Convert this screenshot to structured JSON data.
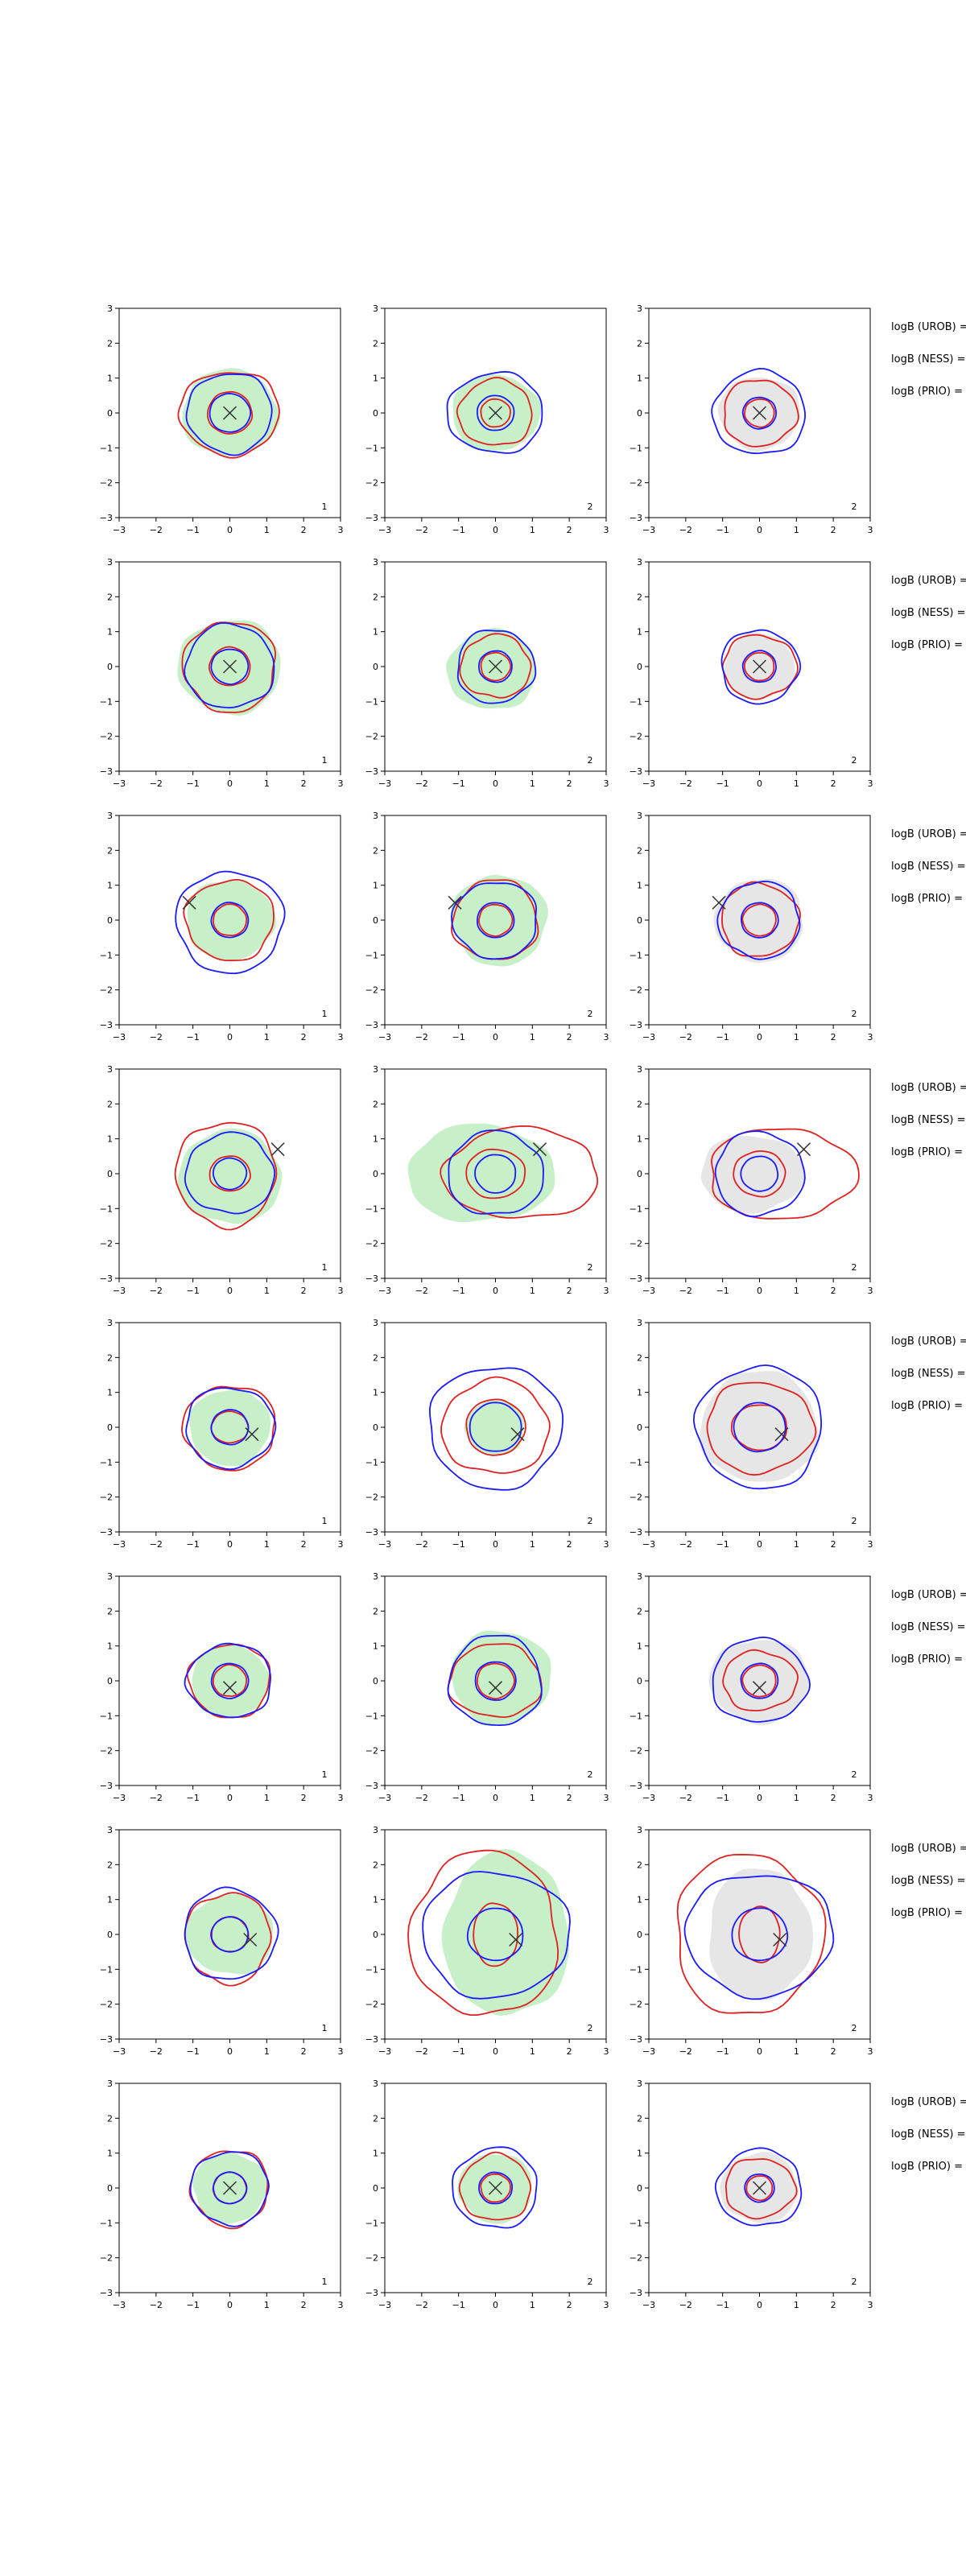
{
  "chart_data": {
    "type": "contour-grid",
    "rows": 8,
    "cols": 3,
    "xlim": [
      -3,
      3
    ],
    "ylim": [
      -3,
      3
    ],
    "xticks": [
      "−3",
      "−2",
      "−1",
      "0",
      "1",
      "2",
      "3"
    ],
    "yticks": [
      "3",
      "2",
      "1",
      "0",
      "−1",
      "−2",
      "−3"
    ],
    "row_labels": [
      "logB (UROB) =",
      "logB (NESS) =",
      "logB (PRIO) ="
    ],
    "colors": {
      "red": "#e02020",
      "blue": "#1a1aff",
      "green_fill": "#c8f0c8",
      "grey_fill": "#e6e6e6",
      "marker": "#333333"
    },
    "panels": [
      {
        "row": 0,
        "col": 0,
        "label": "1",
        "fill": "green",
        "marker": [
          0,
          0
        ],
        "blue": [
          {
            "cx": 0,
            "cy": 0,
            "rx": 0.55,
            "ry": 0.55
          },
          {
            "cx": 0,
            "cy": 0,
            "rx": 1.15,
            "ry": 1.15
          }
        ],
        "red": [
          {
            "cx": 0,
            "cy": 0,
            "rx": 0.6,
            "ry": 0.6
          },
          {
            "cx": 0,
            "cy": 0,
            "rx": 1.35,
            "ry": 1.2
          }
        ],
        "fillShape": {
          "cx": 0,
          "cy": 0,
          "rx": 1.3,
          "ry": 1.25
        }
      },
      {
        "row": 0,
        "col": 1,
        "label": "2",
        "fill": "green",
        "marker": [
          0,
          0
        ],
        "blue": [
          {
            "cx": 0,
            "cy": 0,
            "rx": 0.5,
            "ry": 0.5
          },
          {
            "cx": 0,
            "cy": 0,
            "rx": 1.3,
            "ry": 1.15
          }
        ],
        "red": [
          {
            "cx": 0,
            "cy": 0,
            "rx": 0.4,
            "ry": 0.4
          },
          {
            "cx": 0,
            "cy": 0,
            "rx": 1.0,
            "ry": 0.95
          }
        ],
        "fillShape": {
          "cx": 0,
          "cy": 0,
          "rx": 1.2,
          "ry": 1.1
        }
      },
      {
        "row": 0,
        "col": 2,
        "label": "2",
        "fill": "grey",
        "marker": [
          0,
          0
        ],
        "blue": [
          {
            "cx": 0,
            "cy": 0,
            "rx": 0.45,
            "ry": 0.45
          },
          {
            "cx": 0,
            "cy": 0,
            "rx": 1.25,
            "ry": 1.2
          }
        ],
        "red": [
          {
            "cx": 0,
            "cy": 0,
            "rx": 0.4,
            "ry": 0.4
          },
          {
            "cx": 0,
            "cy": 0,
            "rx": 1.0,
            "ry": 0.95
          }
        ],
        "fillShape": {
          "cx": 0,
          "cy": 0,
          "rx": 1.1,
          "ry": 1.05
        }
      },
      {
        "row": 1,
        "col": 0,
        "label": "1",
        "fill": "green",
        "marker": [
          0,
          0
        ],
        "blue": [
          {
            "cx": 0,
            "cy": 0,
            "rx": 0.5,
            "ry": 0.5
          },
          {
            "cx": 0,
            "cy": 0,
            "rx": 1.2,
            "ry": 1.2
          }
        ],
        "red": [
          {
            "cx": 0,
            "cy": 0,
            "rx": 0.55,
            "ry": 0.55
          },
          {
            "cx": 0,
            "cy": 0,
            "rx": 1.25,
            "ry": 1.3
          }
        ],
        "fillShape": {
          "cx": 0,
          "cy": 0,
          "rx": 1.4,
          "ry": 1.35
        }
      },
      {
        "row": 1,
        "col": 1,
        "label": "2",
        "fill": "green",
        "marker": [
          0,
          0
        ],
        "blue": [
          {
            "cx": 0,
            "cy": 0,
            "rx": 0.45,
            "ry": 0.45
          },
          {
            "cx": 0,
            "cy": 0,
            "rx": 1.05,
            "ry": 1.05
          }
        ],
        "red": [
          {
            "cx": 0,
            "cy": 0,
            "rx": 0.4,
            "ry": 0.4
          },
          {
            "cx": 0,
            "cy": 0,
            "rx": 0.95,
            "ry": 0.9
          }
        ],
        "fillShape": {
          "cx": -0.1,
          "cy": -0.1,
          "rx": 1.2,
          "ry": 1.15
        }
      },
      {
        "row": 1,
        "col": 2,
        "label": "2",
        "fill": "grey",
        "marker": [
          0,
          0
        ],
        "blue": [
          {
            "cx": 0,
            "cy": 0,
            "rx": 0.45,
            "ry": 0.45
          },
          {
            "cx": 0,
            "cy": 0,
            "rx": 1.05,
            "ry": 1.05
          }
        ],
        "red": [
          {
            "cx": 0,
            "cy": 0,
            "rx": 0.4,
            "ry": 0.4
          },
          {
            "cx": 0,
            "cy": 0,
            "rx": 1.0,
            "ry": 0.9
          }
        ],
        "fillShape": {
          "cx": 0,
          "cy": 0,
          "rx": 0.95,
          "ry": 0.95
        }
      },
      {
        "row": 2,
        "col": 0,
        "label": "1",
        "fill": "green",
        "marker": [
          -1.1,
          0.5
        ],
        "blue": [
          {
            "cx": 0,
            "cy": 0,
            "rx": 0.5,
            "ry": 0.5
          },
          {
            "cx": 0,
            "cy": -0.05,
            "rx": 1.45,
            "ry": 1.45
          }
        ],
        "red": [
          {
            "cx": 0,
            "cy": 0,
            "rx": 0.45,
            "ry": 0.45
          },
          {
            "cx": 0,
            "cy": 0,
            "rx": 1.2,
            "ry": 1.15
          }
        ],
        "fillShape": {
          "cx": 0,
          "cy": 0,
          "rx": 1.2,
          "ry": 1.15
        }
      },
      {
        "row": 2,
        "col": 1,
        "label": "2",
        "fill": "green",
        "marker": [
          -1.1,
          0.5
        ],
        "blue": [
          {
            "cx": 0,
            "cy": 0,
            "rx": 0.5,
            "ry": 0.5
          },
          {
            "cx": 0,
            "cy": 0,
            "rx": 1.15,
            "ry": 1.1
          }
        ],
        "red": [
          {
            "cx": 0,
            "cy": 0,
            "rx": 0.45,
            "ry": 0.45
          },
          {
            "cx": 0,
            "cy": 0,
            "rx": 1.15,
            "ry": 1.15
          }
        ],
        "fillShape": {
          "cx": 0.1,
          "cy": 0,
          "rx": 1.3,
          "ry": 1.3
        }
      },
      {
        "row": 2,
        "col": 2,
        "label": "2",
        "fill": "grey",
        "marker": [
          -1.1,
          0.5
        ],
        "blue": [
          {
            "cx": 0,
            "cy": 0,
            "rx": 0.5,
            "ry": 0.5
          },
          {
            "cx": 0,
            "cy": 0,
            "rx": 1.1,
            "ry": 1.1
          }
        ],
        "red": [
          {
            "cx": 0,
            "cy": 0,
            "rx": 0.45,
            "ry": 0.45
          },
          {
            "cx": 0,
            "cy": 0,
            "rx": 1.05,
            "ry": 1.05
          }
        ],
        "fillShape": {
          "cx": 0,
          "cy": 0,
          "rx": 1.2,
          "ry": 1.2
        }
      },
      {
        "row": 3,
        "col": 0,
        "label": "1",
        "fill": "green",
        "marker": [
          1.3,
          0.7
        ],
        "blue": [
          {
            "cx": 0,
            "cy": 0,
            "rx": 0.45,
            "ry": 0.45
          },
          {
            "cx": 0,
            "cy": 0,
            "rx": 1.2,
            "ry": 1.15
          }
        ],
        "red": [
          {
            "cx": 0,
            "cy": 0,
            "rx": 0.55,
            "ry": 0.5
          },
          {
            "cx": -0.1,
            "cy": 0,
            "rx": 1.35,
            "ry": 1.5
          }
        ],
        "fillShape": {
          "cx": 0,
          "cy": -0.1,
          "rx": 1.4,
          "ry": 1.35
        }
      },
      {
        "row": 3,
        "col": 1,
        "label": "2",
        "fill": "green",
        "marker": [
          1.2,
          0.7
        ],
        "blue": [
          {
            "cx": 0,
            "cy": 0,
            "rx": 0.55,
            "ry": 0.55
          },
          {
            "cx": 0,
            "cy": 0,
            "rx": 1.3,
            "ry": 1.2
          }
        ],
        "red": [
          {
            "cx": 0,
            "cy": 0,
            "rx": 0.8,
            "ry": 0.7
          },
          {
            "cx": 0.7,
            "cy": 0,
            "rx": 2.1,
            "ry": 1.3
          }
        ],
        "fillShape": {
          "cx": -0.4,
          "cy": 0,
          "rx": 2.0,
          "ry": 1.4
        }
      },
      {
        "row": 3,
        "col": 2,
        "label": "2",
        "fill": "grey",
        "marker": [
          1.2,
          0.7
        ],
        "blue": [
          {
            "cx": 0,
            "cy": 0,
            "rx": 0.5,
            "ry": 0.5
          },
          {
            "cx": 0,
            "cy": 0,
            "rx": 1.2,
            "ry": 1.2
          }
        ],
        "red": [
          {
            "cx": 0,
            "cy": 0,
            "rx": 0.7,
            "ry": 0.65
          },
          {
            "cx": 0.6,
            "cy": 0,
            "rx": 2.0,
            "ry": 1.3
          }
        ],
        "fillShape": {
          "cx": -0.2,
          "cy": 0,
          "rx": 1.4,
          "ry": 1.1
        }
      },
      {
        "row": 4,
        "col": 0,
        "label": "1",
        "fill": "green",
        "marker": [
          0.6,
          -0.2
        ],
        "blue": [
          {
            "cx": 0,
            "cy": 0,
            "rx": 0.5,
            "ry": 0.5
          },
          {
            "cx": 0,
            "cy": 0,
            "rx": 1.2,
            "ry": 1.15
          }
        ],
        "red": [
          {
            "cx": 0,
            "cy": 0,
            "rx": 0.5,
            "ry": 0.45
          },
          {
            "cx": 0,
            "cy": 0,
            "rx": 1.25,
            "ry": 1.2
          }
        ],
        "fillShape": {
          "cx": 0,
          "cy": 0,
          "rx": 1.1,
          "ry": 1.1
        }
      },
      {
        "row": 4,
        "col": 1,
        "label": "2",
        "fill": "green",
        "marker": [
          0.6,
          -0.2
        ],
        "blue": [
          {
            "cx": 0,
            "cy": 0,
            "rx": 0.7,
            "ry": 0.7
          },
          {
            "cx": 0,
            "cy": 0,
            "rx": 1.8,
            "ry": 1.75
          }
        ],
        "red": [
          {
            "cx": 0,
            "cy": 0,
            "rx": 0.8,
            "ry": 0.8
          },
          {
            "cx": 0,
            "cy": 0,
            "rx": 1.45,
            "ry": 1.35
          }
        ],
        "fillShape": {
          "cx": 0,
          "cy": 0,
          "rx": 0.8,
          "ry": 0.8
        }
      },
      {
        "row": 4,
        "col": 2,
        "label": "2",
        "fill": "grey",
        "marker": [
          0.6,
          -0.2
        ],
        "blue": [
          {
            "cx": 0,
            "cy": 0,
            "rx": 0.7,
            "ry": 0.7
          },
          {
            "cx": 0,
            "cy": 0,
            "rx": 1.7,
            "ry": 1.75
          }
        ],
        "red": [
          {
            "cx": 0,
            "cy": 0,
            "rx": 0.75,
            "ry": 0.65
          },
          {
            "cx": 0,
            "cy": 0,
            "rx": 1.45,
            "ry": 1.3
          }
        ],
        "fillShape": {
          "cx": 0,
          "cy": 0,
          "rx": 1.6,
          "ry": 1.6
        }
      },
      {
        "row": 5,
        "col": 0,
        "label": "1",
        "fill": "green",
        "marker": [
          0,
          -0.2
        ],
        "blue": [
          {
            "cx": 0,
            "cy": 0,
            "rx": 0.5,
            "ry": 0.5
          },
          {
            "cx": 0,
            "cy": 0,
            "rx": 1.15,
            "ry": 1.05
          }
        ],
        "red": [
          {
            "cx": 0,
            "cy": 0,
            "rx": 0.45,
            "ry": 0.45
          },
          {
            "cx": 0,
            "cy": 0,
            "rx": 1.1,
            "ry": 1.05
          }
        ],
        "fillShape": {
          "cx": 0,
          "cy": 0,
          "rx": 1.05,
          "ry": 1.05
        }
      },
      {
        "row": 5,
        "col": 1,
        "label": "2",
        "fill": "green",
        "marker": [
          0,
          -0.2
        ],
        "blue": [
          {
            "cx": 0,
            "cy": 0,
            "rx": 0.55,
            "ry": 0.55
          },
          {
            "cx": 0,
            "cy": 0,
            "rx": 1.25,
            "ry": 1.3
          }
        ],
        "red": [
          {
            "cx": 0,
            "cy": 0,
            "rx": 0.5,
            "ry": 0.5
          },
          {
            "cx": 0,
            "cy": 0,
            "rx": 1.25,
            "ry": 1.05
          }
        ],
        "fillShape": {
          "cx": 0.15,
          "cy": 0.1,
          "rx": 1.35,
          "ry": 1.35
        }
      },
      {
        "row": 5,
        "col": 2,
        "label": "2",
        "fill": "grey",
        "marker": [
          0,
          -0.2
        ],
        "blue": [
          {
            "cx": 0,
            "cy": 0,
            "rx": 0.5,
            "ry": 0.5
          },
          {
            "cx": 0,
            "cy": 0,
            "rx": 1.3,
            "ry": 1.2
          }
        ],
        "red": [
          {
            "cx": 0,
            "cy": 0,
            "rx": 0.45,
            "ry": 0.45
          },
          {
            "cx": 0,
            "cy": 0,
            "rx": 1.0,
            "ry": 0.85
          }
        ],
        "fillShape": {
          "cx": 0,
          "cy": 0,
          "rx": 1.35,
          "ry": 1.2
        }
      },
      {
        "row": 6,
        "col": 0,
        "label": "1",
        "fill": "green",
        "marker": [
          0.55,
          -0.15
        ],
        "blue": [
          {
            "cx": 0,
            "cy": 0,
            "rx": 0.5,
            "ry": 0.5
          },
          {
            "cx": 0,
            "cy": 0,
            "rx": 1.25,
            "ry": 1.3
          }
        ],
        "red": [
          {
            "cx": 0,
            "cy": 0,
            "rx": 0.5,
            "ry": 0.5
          },
          {
            "cx": -0.05,
            "cy": -0.1,
            "rx": 1.15,
            "ry": 1.3
          }
        ],
        "fillShape": {
          "cx": 0,
          "cy": 0,
          "rx": 1.2,
          "ry": 1.15
        }
      },
      {
        "row": 6,
        "col": 1,
        "label": "2",
        "fill": "green",
        "marker": [
          0.55,
          -0.15
        ],
        "blue": [
          {
            "cx": 0,
            "cy": 0,
            "rx": 0.75,
            "ry": 0.75
          },
          {
            "cx": 0,
            "cy": 0,
            "rx": 2.0,
            "ry": 1.8
          }
        ],
        "red": [
          {
            "cx": 0,
            "cy": 0,
            "rx": 0.6,
            "ry": 0.9
          },
          {
            "cx": -0.3,
            "cy": 0,
            "rx": 2.0,
            "ry": 2.35
          }
        ],
        "fillShape": {
          "cx": 0.3,
          "cy": 0,
          "rx": 1.7,
          "ry": 2.35
        }
      },
      {
        "row": 6,
        "col": 2,
        "label": "2",
        "fill": "grey",
        "marker": [
          0.55,
          -0.15
        ],
        "blue": [
          {
            "cx": 0,
            "cy": 0,
            "rx": 0.75,
            "ry": 0.75
          },
          {
            "cx": 0,
            "cy": 0,
            "rx": 2.0,
            "ry": 1.75
          }
        ],
        "red": [
          {
            "cx": 0,
            "cy": 0,
            "rx": 0.55,
            "ry": 0.8
          },
          {
            "cx": -0.3,
            "cy": 0,
            "rx": 2.0,
            "ry": 2.3
          }
        ],
        "fillShape": {
          "cx": 0,
          "cy": 0,
          "rx": 1.4,
          "ry": 1.9
        }
      },
      {
        "row": 7,
        "col": 0,
        "label": "1",
        "fill": "green",
        "marker": [
          0,
          0
        ],
        "blue": [
          {
            "cx": 0,
            "cy": 0,
            "rx": 0.45,
            "ry": 0.45
          },
          {
            "cx": 0,
            "cy": 0,
            "rx": 1.05,
            "ry": 1.05
          }
        ],
        "red": [
          {
            "cx": 0,
            "cy": 0,
            "rx": 0.45,
            "ry": 0.45
          },
          {
            "cx": 0,
            "cy": 0,
            "rx": 1.05,
            "ry": 1.1
          }
        ],
        "fillShape": {
          "cx": 0,
          "cy": 0,
          "rx": 1.0,
          "ry": 1.0
        }
      },
      {
        "row": 7,
        "col": 1,
        "label": "2",
        "fill": "green",
        "marker": [
          0,
          0
        ],
        "blue": [
          {
            "cx": 0,
            "cy": 0,
            "rx": 0.45,
            "ry": 0.45
          },
          {
            "cx": 0,
            "cy": 0,
            "rx": 1.15,
            "ry": 1.15
          }
        ],
        "red": [
          {
            "cx": 0,
            "cy": 0,
            "rx": 0.4,
            "ry": 0.4
          },
          {
            "cx": 0,
            "cy": 0,
            "rx": 0.95,
            "ry": 0.95
          }
        ],
        "fillShape": {
          "cx": 0,
          "cy": 0,
          "rx": 1.0,
          "ry": 1.0
        }
      },
      {
        "row": 7,
        "col": 2,
        "label": "2",
        "fill": "grey",
        "marker": [
          0,
          0
        ],
        "blue": [
          {
            "cx": 0,
            "cy": 0,
            "rx": 0.4,
            "ry": 0.4
          },
          {
            "cx": 0,
            "cy": 0,
            "rx": 1.15,
            "ry": 1.1
          }
        ],
        "red": [
          {
            "cx": 0,
            "cy": 0,
            "rx": 0.35,
            "ry": 0.35
          },
          {
            "cx": 0,
            "cy": 0,
            "rx": 0.95,
            "ry": 0.85
          }
        ],
        "fillShape": {
          "cx": 0,
          "cy": 0,
          "rx": 1.05,
          "ry": 1.0
        }
      }
    ]
  }
}
